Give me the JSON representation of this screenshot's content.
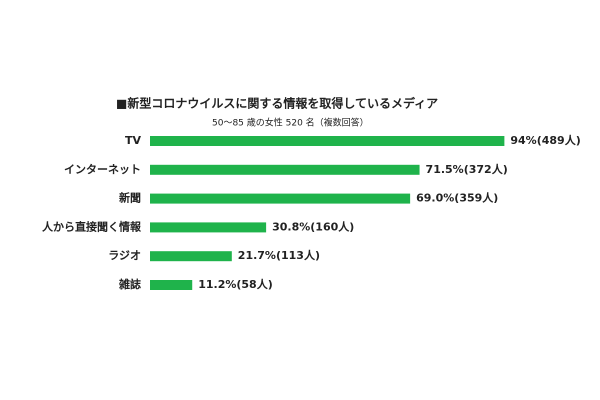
{
  "chart_data": {
    "type": "barh",
    "title": "■新型コロナウイルスに関する情報を取得しているメディア",
    "subtitle": "50～85 歳の女性 520 名（複数回答）",
    "categories": [
      "TV",
      "インターネット",
      "新聞",
      "人から直接聞く情報",
      "ラジオ",
      "雑誌"
    ],
    "values": [
      94,
      71.5,
      69.0,
      30.8,
      21.7,
      11.2
    ],
    "value_labels": [
      "94%(489人)",
      "71.5%(372人)",
      "69.0%(359人)",
      "30.8%(160人)",
      "21.7%(113人)",
      "11.2%(58人)"
    ],
    "color": "#1fb34b"
  }
}
